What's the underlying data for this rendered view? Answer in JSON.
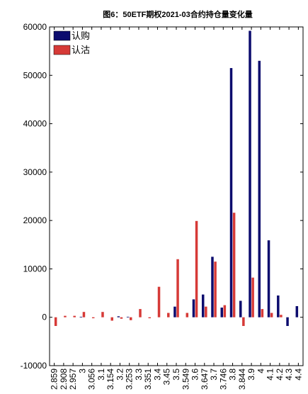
{
  "chart_data": {
    "type": "bar",
    "title": "图6：50ETF期权2021-03合约持仓量变化量",
    "xlabel": "",
    "ylabel": "",
    "ylim": [
      -10000,
      60000
    ],
    "yticks": [
      -10000,
      0,
      10000,
      20000,
      30000,
      40000,
      50000,
      60000
    ],
    "grid": false,
    "legend_position": "top-left",
    "categories": [
      "2.859",
      "2.908",
      "2.957",
      "3",
      "3.056",
      "3.1",
      "3.154",
      "3.2",
      "3.253",
      "3.3",
      "3.351",
      "3.4",
      "3.45",
      "3.5",
      "3.549",
      "3.6",
      "3.647",
      "3.7",
      "3.746",
      "3.8",
      "3.844",
      "3.9",
      "4",
      "4.1",
      "4.2",
      "4.3",
      "4.4"
    ],
    "series": [
      {
        "name": "认购",
        "color": "#0c0c6e",
        "values": [
          0,
          0,
          0,
          100,
          0,
          0,
          0,
          200,
          100,
          0,
          0,
          0,
          0,
          2200,
          0,
          3700,
          4700,
          12500,
          2000,
          51500,
          3400,
          59200,
          53000,
          15900,
          4500,
          -1800,
          2300
        ]
      },
      {
        "name": "认沽",
        "color": "#d63a37",
        "values": [
          -1800,
          300,
          300,
          1100,
          -200,
          1100,
          -700,
          -300,
          -600,
          1700,
          -200,
          6300,
          900,
          12000,
          900,
          19900,
          2200,
          11500,
          2500,
          21600,
          -1800,
          8200,
          1700,
          900,
          500,
          0,
          0
        ]
      }
    ]
  }
}
